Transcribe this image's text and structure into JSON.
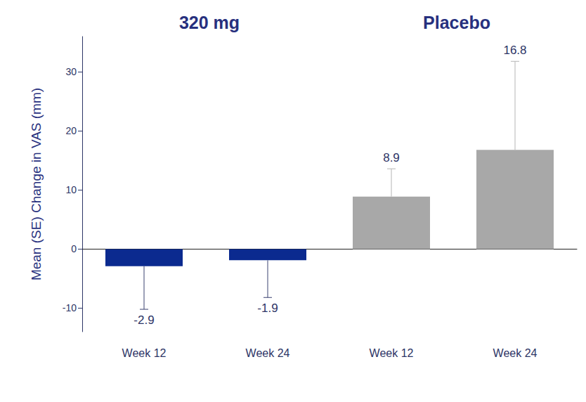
{
  "chart_data": {
    "type": "bar",
    "y_label": "Mean (SE) Change in VAS (mm)",
    "categories": [
      "Week 12",
      "Week 24"
    ],
    "series": [
      {
        "name": "320 mg",
        "color": "#0b2a8f",
        "values": [
          -2.9,
          -1.9
        ],
        "se": [
          7.3,
          6.3
        ]
      },
      {
        "name": "Placebo",
        "color": "#a8a8a8",
        "values": [
          8.9,
          16.8
        ],
        "se": [
          4.7,
          15.0
        ]
      }
    ],
    "ylim": [
      -14,
      36
    ],
    "yticks": [
      -10,
      0,
      10,
      20,
      30
    ],
    "grid": false,
    "data_labels": true
  }
}
